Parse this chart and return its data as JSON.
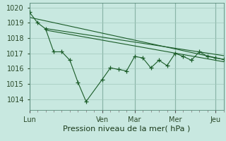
{
  "bg_color": "#c8e8e0",
  "grid_color": "#a0c8bc",
  "line_color": "#1a5c28",
  "sep_color": "#5a8a7a",
  "xlabel": "Pression niveau de la mer( hPa )",
  "xlabel_fontsize": 8,
  "tick_fontsize": 7,
  "ylim": [
    1013.3,
    1020.3
  ],
  "yticks": [
    1014,
    1015,
    1016,
    1017,
    1018,
    1019,
    1020
  ],
  "x_day_labels": [
    "Lun",
    "Ven",
    "Mar",
    "Mer",
    "Jeu"
  ],
  "x_day_positions": [
    0,
    9,
    13,
    18,
    23
  ],
  "zigzag_x": [
    0,
    1,
    2,
    3,
    4,
    5,
    6,
    7,
    9,
    10,
    11,
    12,
    13,
    14,
    15,
    16,
    17,
    18,
    19,
    20,
    21,
    22,
    23,
    24
  ],
  "zigzag_y": [
    1019.7,
    1019.0,
    1018.6,
    1017.1,
    1017.1,
    1016.55,
    1015.1,
    1013.85,
    1015.3,
    1016.05,
    1015.95,
    1015.85,
    1016.8,
    1016.7,
    1016.05,
    1016.55,
    1016.2,
    1017.0,
    1016.8,
    1016.55,
    1017.1,
    1016.8,
    1016.7,
    1016.6
  ],
  "trend1_x": [
    0,
    24
  ],
  "trend1_y": [
    1019.35,
    1016.6
  ],
  "trend2_x": [
    2,
    24
  ],
  "trend2_y": [
    1018.62,
    1016.85
  ],
  "trend3_x": [
    2,
    24
  ],
  "trend3_y": [
    1018.52,
    1016.45
  ],
  "xmin": 0,
  "xmax": 24,
  "minor_xtick_count": 25
}
